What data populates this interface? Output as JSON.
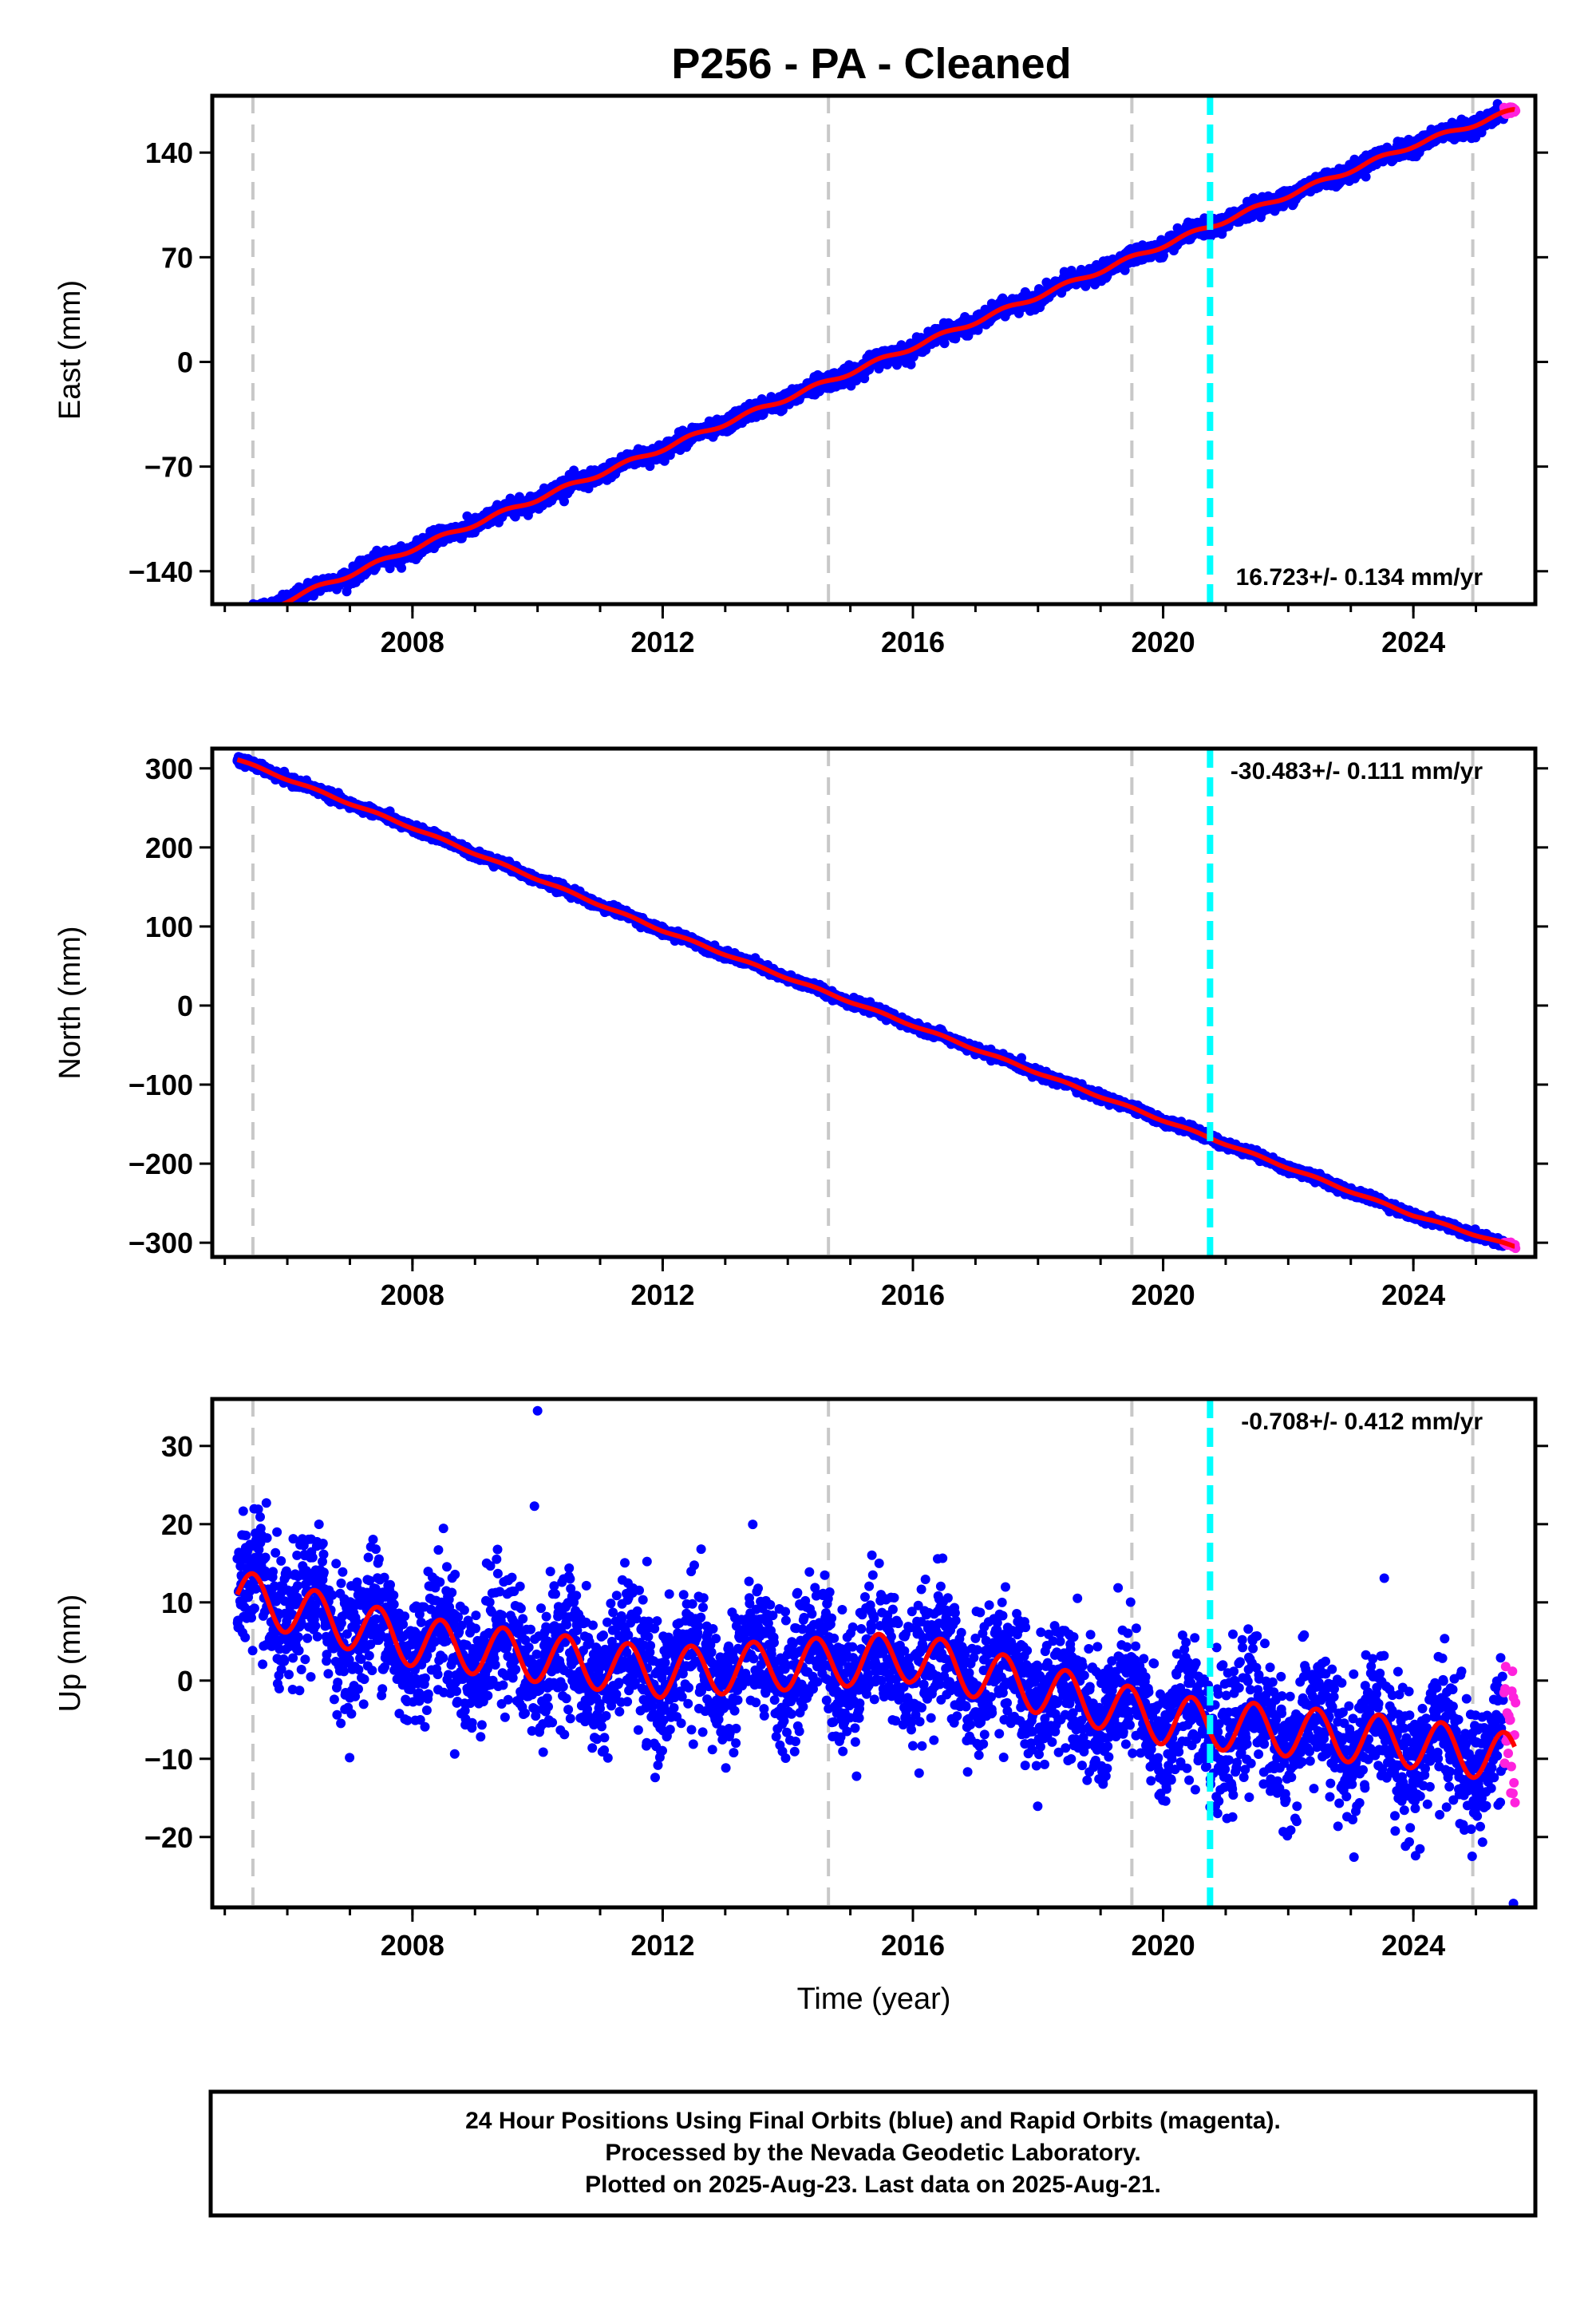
{
  "title": "P256  - PA - Cleaned",
  "footer": {
    "line1": "24 Hour Positions Using Final Orbits (blue) and Rapid Orbits (magenta).",
    "line2": "Processed by the Nevada Geodetic Laboratory.",
    "line3": "Plotted on 2025-Aug-23. Last data on 2025-Aug-21."
  },
  "colors": {
    "final_orbits": "#0000ff",
    "rapid_orbits": "#ff22dd",
    "model_fit": "#ff0000",
    "antenna_change": "#c8c8c8",
    "earthquake": "#00ffff"
  },
  "chart_data": [
    {
      "type": "scatter",
      "panel": "east",
      "ylabel": "East (mm)",
      "xlabel": "",
      "xlim": [
        2004.8,
        2025.95
      ],
      "ylim": [
        -162,
        178
      ],
      "xticks": [
        "2008",
        "2012",
        "2016",
        "2020",
        "2024"
      ],
      "yticks": [
        "140",
        "70",
        "0",
        "−70",
        "−140"
      ],
      "rate_label": "16.723+/- 0.134 mm/yr",
      "rate_position": "bottom-right",
      "vlines_gray": [
        2005.45,
        2014.65,
        2019.5,
        2024.95
      ],
      "vline_cyan": 2020.75,
      "series": [
        {
          "values_description_only": false,
          "x": [
            2005.2,
            2008.0,
            2012.0,
            2016.0,
            2020.0,
            2024.0,
            2025.6
          ],
          "y": [
            -173,
            -125,
            -58,
            10,
            78,
            145,
            168
          ]
        }
      ],
      "velocity_mm_per_yr": 16.723,
      "velocity_sigma": 0.134
    },
    {
      "type": "scatter",
      "panel": "north",
      "ylabel": "North (mm)",
      "xlabel": "",
      "xlim": [
        2004.8,
        2025.95
      ],
      "ylim": [
        -318,
        325
      ],
      "xticks": [
        "2008",
        "2012",
        "2016",
        "2020",
        "2024"
      ],
      "yticks": [
        "300",
        "200",
        "100",
        "0",
        "−100",
        "−200",
        "−300"
      ],
      "rate_label": "-30.483+/- 0.111 mm/yr",
      "rate_position": "top-right",
      "vlines_gray": [
        2005.45,
        2014.65,
        2019.5,
        2024.95
      ],
      "vline_cyan": 2020.75,
      "series": [
        {
          "values_description_only": false,
          "x": [
            2005.2,
            2008.0,
            2012.0,
            2016.0,
            2020.0,
            2024.0,
            2025.6
          ],
          "y": [
            311,
            225,
            95,
            -25,
            -145,
            -265,
            -305
          ]
        }
      ],
      "velocity_mm_per_yr": -30.483,
      "velocity_sigma": 0.111
    },
    {
      "type": "scatter",
      "panel": "up",
      "ylabel": "Up (mm)",
      "xlabel": "Time (year)",
      "xlim": [
        2004.8,
        2025.95
      ],
      "ylim": [
        -29,
        36
      ],
      "xticks": [
        "2008",
        "2012",
        "2016",
        "2020",
        "2024"
      ],
      "yticks": [
        "30",
        "20",
        "10",
        "0",
        "−10",
        "−20"
      ],
      "rate_label": "-0.708+/- 0.412 mm/yr",
      "rate_position": "top-right",
      "vlines_gray": [
        2005.45,
        2014.65,
        2019.5,
        2024.95
      ],
      "vline_cyan": 2020.75,
      "series": [
        {
          "values_description_only": false,
          "x": [
            2005.2,
            2008.0,
            2012.0,
            2016.0,
            2020.0,
            2024.0,
            2025.6
          ],
          "y": [
            11,
            5,
            1,
            3,
            -5,
            -8,
            -10
          ]
        }
      ],
      "outliers": [
        [
          2010.0,
          34.5
        ],
        [
          2009.95,
          22.3
        ],
        [
          2025.6,
          -28.5
        ]
      ],
      "velocity_mm_per_yr": -0.708,
      "velocity_sigma": 0.412
    }
  ]
}
